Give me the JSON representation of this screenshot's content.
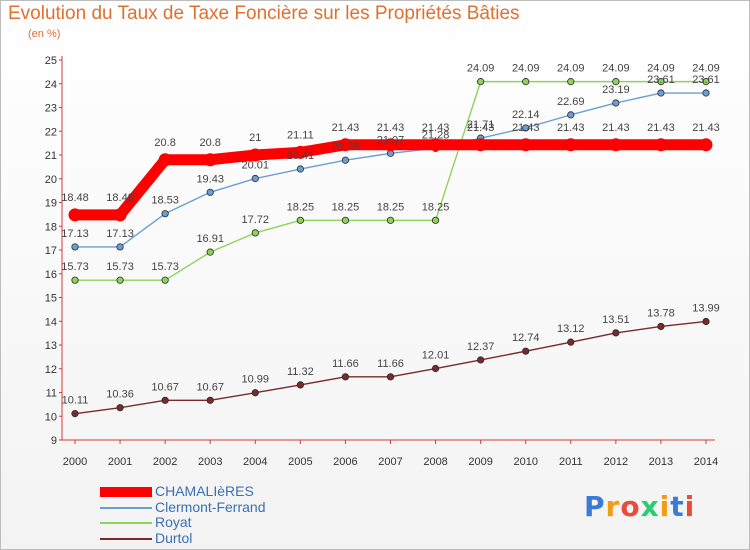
{
  "page": {
    "title": "Evolution du Taux de Taxe Foncière sur les Propriétés Bâties",
    "unit": "(en %)"
  },
  "logo": {
    "text": "Proxiti"
  },
  "chart_data": {
    "type": "line",
    "title": "Evolution du Taux de Taxe Foncière sur les Propriétés Bâties",
    "ylabel": "(en %)",
    "xlabel": "",
    "ylim": [
      9,
      25
    ],
    "yticks": [
      9,
      10,
      11,
      12,
      13,
      14,
      15,
      16,
      17,
      18,
      19,
      20,
      21,
      22,
      23,
      24,
      25
    ],
    "grid": false,
    "legend_position": "bottom-left",
    "x": [
      "2000",
      "2001",
      "2002",
      "2003",
      "2004",
      "2005",
      "2006",
      "2007",
      "2008",
      "2009",
      "2010",
      "2011",
      "2012",
      "2013",
      "2014"
    ],
    "series": [
      {
        "name": "CHAMALIèRES",
        "color": "#ff0000",
        "values": [
          18.48,
          18.48,
          20.8,
          20.8,
          21,
          21.11,
          21.43,
          21.43,
          21.43,
          21.43,
          21.43,
          21.43,
          21.43,
          21.43,
          21.43
        ],
        "labels": [
          "18.48",
          "18.48",
          "20.8",
          "20.8",
          "21",
          "21.11",
          "21.43",
          "21.43",
          "21.43",
          "21.43",
          "21.43",
          "21.43",
          "21.43",
          "21.43",
          "21.43"
        ]
      },
      {
        "name": "Clermont-Ferrand",
        "color": "#6a9fd4",
        "values": [
          17.13,
          17.13,
          18.53,
          19.43,
          20.01,
          20.41,
          20.78,
          21.07,
          21.28,
          21.71,
          22.14,
          22.69,
          23.19,
          23.61,
          23.61
        ],
        "labels": [
          "17.13",
          "17.13",
          "18.53",
          "19.43",
          "20.01",
          "20.41",
          "20.78",
          "21.07",
          "21.28",
          "21.71",
          "22.14",
          "22.69",
          "23.19",
          "23.61",
          "23.61"
        ]
      },
      {
        "name": "Royat",
        "color": "#8fd45a",
        "values": [
          15.73,
          15.73,
          15.73,
          16.91,
          17.72,
          18.25,
          18.25,
          18.25,
          18.25,
          24.09,
          24.09,
          24.09,
          24.09,
          24.09,
          24.09
        ],
        "labels": [
          "15.73",
          "15.73",
          "15.73",
          "16.91",
          "17.72",
          "18.25",
          "18.25",
          "18.25",
          "18.25",
          "24.09",
          "24.09",
          "24.09",
          "24.09",
          "24.09",
          "24.09"
        ]
      },
      {
        "name": "Durtol",
        "color": "#7a2a2a",
        "values": [
          10.11,
          10.36,
          10.67,
          10.67,
          10.99,
          11.32,
          11.66,
          11.66,
          12.01,
          12.37,
          12.74,
          13.12,
          13.51,
          13.78,
          13.99
        ],
        "labels": [
          "10.11",
          "10.36",
          "10.67",
          "10.67",
          "10.99",
          "11.32",
          "11.66",
          "11.66",
          "12.01",
          "12.37",
          "12.74",
          "13.12",
          "13.51",
          "13.78",
          "13.99"
        ]
      }
    ]
  }
}
